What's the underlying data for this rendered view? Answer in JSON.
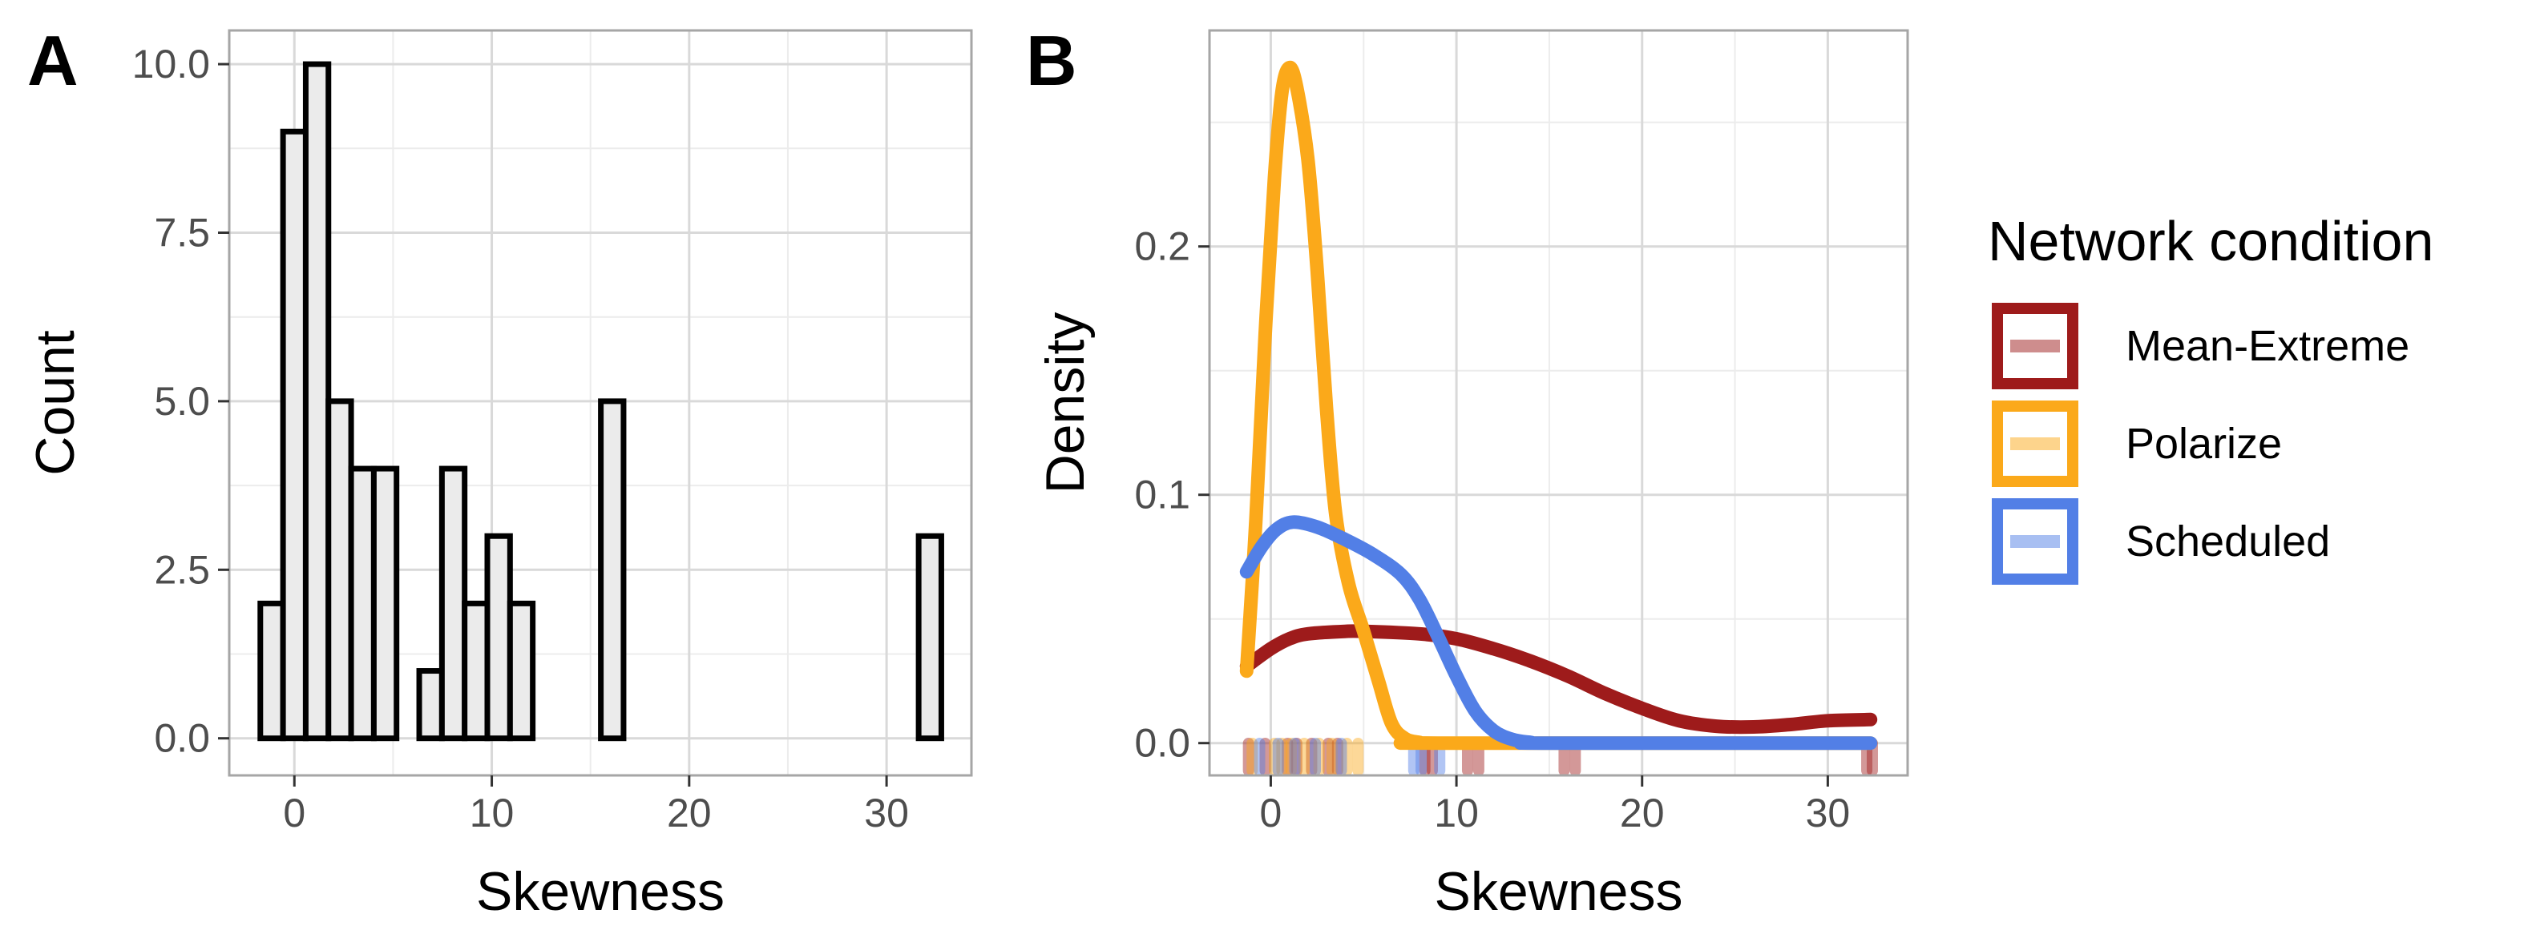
{
  "panel_labels": {
    "a": "A",
    "b": "B"
  },
  "colors": {
    "Mean-Extreme": "#9e1b1b",
    "Polarize": "#fba91a",
    "Scheduled": "#527fe6",
    "bar_fill": "#ebebeb",
    "bar_stroke": "#000000",
    "grid": "#d9d9d9",
    "panel_border": "#a6a6a6"
  },
  "chart_data": [
    {
      "type": "bar",
      "subtype": "histogram",
      "title": "",
      "xlabel": "Skewness",
      "ylabel": "Count",
      "xlim": [
        -3.3,
        34.3
      ],
      "ylim": [
        -0.55,
        10.5
      ],
      "x_ticks": [
        {
          "value": 0,
          "label": "0"
        },
        {
          "value": 10,
          "label": "10"
        },
        {
          "value": 20,
          "label": "20"
        },
        {
          "value": 30,
          "label": "30"
        }
      ],
      "y_ticks": [
        {
          "value": 0,
          "label": "0.0"
        },
        {
          "value": 2.5,
          "label": "2.5"
        },
        {
          "value": 5,
          "label": "5.0"
        },
        {
          "value": 7.5,
          "label": "7.5"
        },
        {
          "value": 10,
          "label": "10.0"
        }
      ],
      "grid": true,
      "bin_width": 1.15,
      "bins": [
        {
          "center": -1.15,
          "count": 2
        },
        {
          "center": 0.0,
          "count": 9
        },
        {
          "center": 1.15,
          "count": 10
        },
        {
          "center": 2.3,
          "count": 5
        },
        {
          "center": 3.45,
          "count": 4
        },
        {
          "center": 4.6,
          "count": 4
        },
        {
          "center": 5.75,
          "count": 0
        },
        {
          "center": 6.9,
          "count": 1
        },
        {
          "center": 8.05,
          "count": 4
        },
        {
          "center": 9.2,
          "count": 2
        },
        {
          "center": 10.35,
          "count": 3
        },
        {
          "center": 11.5,
          "count": 2
        },
        {
          "center": 12.65,
          "count": 0
        },
        {
          "center": 13.8,
          "count": 0
        },
        {
          "center": 14.95,
          "count": 0
        },
        {
          "center": 16.1,
          "count": 5
        },
        {
          "center": 17.25,
          "count": 0
        },
        {
          "center": 18.4,
          "count": 0
        },
        {
          "center": 19.55,
          "count": 0
        },
        {
          "center": 20.7,
          "count": 0
        },
        {
          "center": 21.85,
          "count": 0
        },
        {
          "center": 23.0,
          "count": 0
        },
        {
          "center": 24.15,
          "count": 0
        },
        {
          "center": 25.3,
          "count": 0
        },
        {
          "center": 26.45,
          "count": 0
        },
        {
          "center": 27.6,
          "count": 0
        },
        {
          "center": 28.75,
          "count": 0
        },
        {
          "center": 29.9,
          "count": 0
        },
        {
          "center": 31.05,
          "count": 0
        },
        {
          "center": 32.2,
          "count": 3
        }
      ]
    },
    {
      "type": "line",
      "subtype": "density",
      "title": "",
      "xlabel": "Skewness",
      "ylabel": "Density",
      "xlim": [
        -3.3,
        34.3
      ],
      "ylim": [
        -0.013,
        0.287
      ],
      "x_ticks": [
        {
          "value": 0,
          "label": "0"
        },
        {
          "value": 10,
          "label": "10"
        },
        {
          "value": 20,
          "label": "20"
        },
        {
          "value": 30,
          "label": "30"
        }
      ],
      "y_ticks": [
        {
          "value": 0,
          "label": "0.0"
        },
        {
          "value": 0.1,
          "label": "0.1"
        },
        {
          "value": 0.2,
          "label": "0.2"
        }
      ],
      "grid": true,
      "legend": {
        "title": "Network condition",
        "position": "right"
      },
      "series": [
        {
          "name": "Mean-Extreme",
          "points": [
            [
              -1.3,
              0.031
            ],
            [
              0,
              0.038
            ],
            [
              1,
              0.042
            ],
            [
              2,
              0.044
            ],
            [
              4,
              0.045
            ],
            [
              5,
              0.045
            ],
            [
              8,
              0.044
            ],
            [
              10,
              0.042
            ],
            [
              12,
              0.038
            ],
            [
              14,
              0.033
            ],
            [
              16,
              0.027
            ],
            [
              18,
              0.02
            ],
            [
              20,
              0.014
            ],
            [
              22,
              0.009
            ],
            [
              24,
              0.0068
            ],
            [
              26,
              0.0065
            ],
            [
              28,
              0.0075
            ],
            [
              30,
              0.009
            ],
            [
              32.3,
              0.0095
            ]
          ],
          "rug": [
            -1.2,
            -0.3,
            0.9,
            1.4,
            2.2,
            3.1,
            3.6,
            8.3,
            8.7,
            10.6,
            11.2,
            15.8,
            16.4,
            32.1,
            32.4
          ]
        },
        {
          "name": "Polarize",
          "points": [
            [
              -1.3,
              0.029
            ],
            [
              -0.8,
              0.09
            ],
            [
              -0.3,
              0.165
            ],
            [
              0.2,
              0.228
            ],
            [
              0.6,
              0.262
            ],
            [
              1.0,
              0.272
            ],
            [
              1.4,
              0.264
            ],
            [
              2.0,
              0.235
            ],
            [
              2.5,
              0.19
            ],
            [
              3.0,
              0.135
            ],
            [
              3.5,
              0.092
            ],
            [
              4.2,
              0.064
            ],
            [
              5.0,
              0.045
            ],
            [
              5.8,
              0.025
            ],
            [
              6.5,
              0.008
            ],
            [
              7.2,
              0.002
            ],
            [
              8.0,
              0.0003
            ],
            [
              9.0,
              0.0
            ],
            [
              32.3,
              0.0
            ]
          ],
          "rug": [
            -1.0,
            0.2,
            0.6,
            1.1,
            1.8,
            2.6,
            3.3,
            4.1,
            4.7
          ]
        },
        {
          "name": "Scheduled",
          "points": [
            [
              -1.3,
              0.069
            ],
            [
              -0.5,
              0.079
            ],
            [
              0.3,
              0.086
            ],
            [
              1.2,
              0.089
            ],
            [
              2.5,
              0.087
            ],
            [
              4.0,
              0.082
            ],
            [
              5.5,
              0.076
            ],
            [
              7.0,
              0.068
            ],
            [
              8.0,
              0.058
            ],
            [
              9.0,
              0.043
            ],
            [
              10.0,
              0.027
            ],
            [
              11.0,
              0.013
            ],
            [
              12.0,
              0.005
            ],
            [
              13.0,
              0.0015
            ],
            [
              14.0,
              0.0003
            ],
            [
              15.0,
              0.0
            ],
            [
              32.3,
              0.0
            ]
          ],
          "rug": [
            -0.6,
            0.4,
            1.3,
            2.4,
            3.8,
            7.7,
            8.1,
            9.1
          ]
        }
      ]
    }
  ]
}
